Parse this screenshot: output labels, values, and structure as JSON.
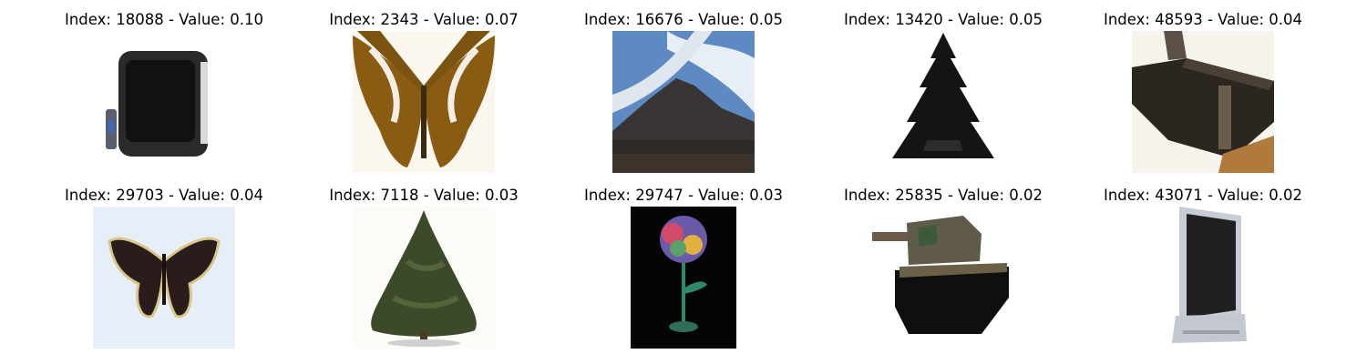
{
  "figure": {
    "panels": [
      {
        "title": "Index: 18088 - Value: 0.10",
        "subject": "tv-icon"
      },
      {
        "title": "Index: 2343 - Value: 0.07",
        "subject": "butterfly-icon"
      },
      {
        "title": "Index: 16676 - Value: 0.05",
        "subject": "mountain-icon"
      },
      {
        "title": "Index: 13420 - Value: 0.05",
        "subject": "pine-tree-icon"
      },
      {
        "title": "Index: 48593 - Value: 0.04",
        "subject": "tank-icon"
      },
      {
        "title": "Index: 29703 - Value: 0.04",
        "subject": "butterfly-icon"
      },
      {
        "title": "Index: 7118 - Value: 0.03",
        "subject": "tree-icon"
      },
      {
        "title": "Index: 29747 - Value: 0.03",
        "subject": "flower-icon"
      },
      {
        "title": "Index: 25835 - Value: 0.02",
        "subject": "tank-icon"
      },
      {
        "title": "Index: 43071 - Value: 0.02",
        "subject": "tv-icon"
      }
    ]
  }
}
